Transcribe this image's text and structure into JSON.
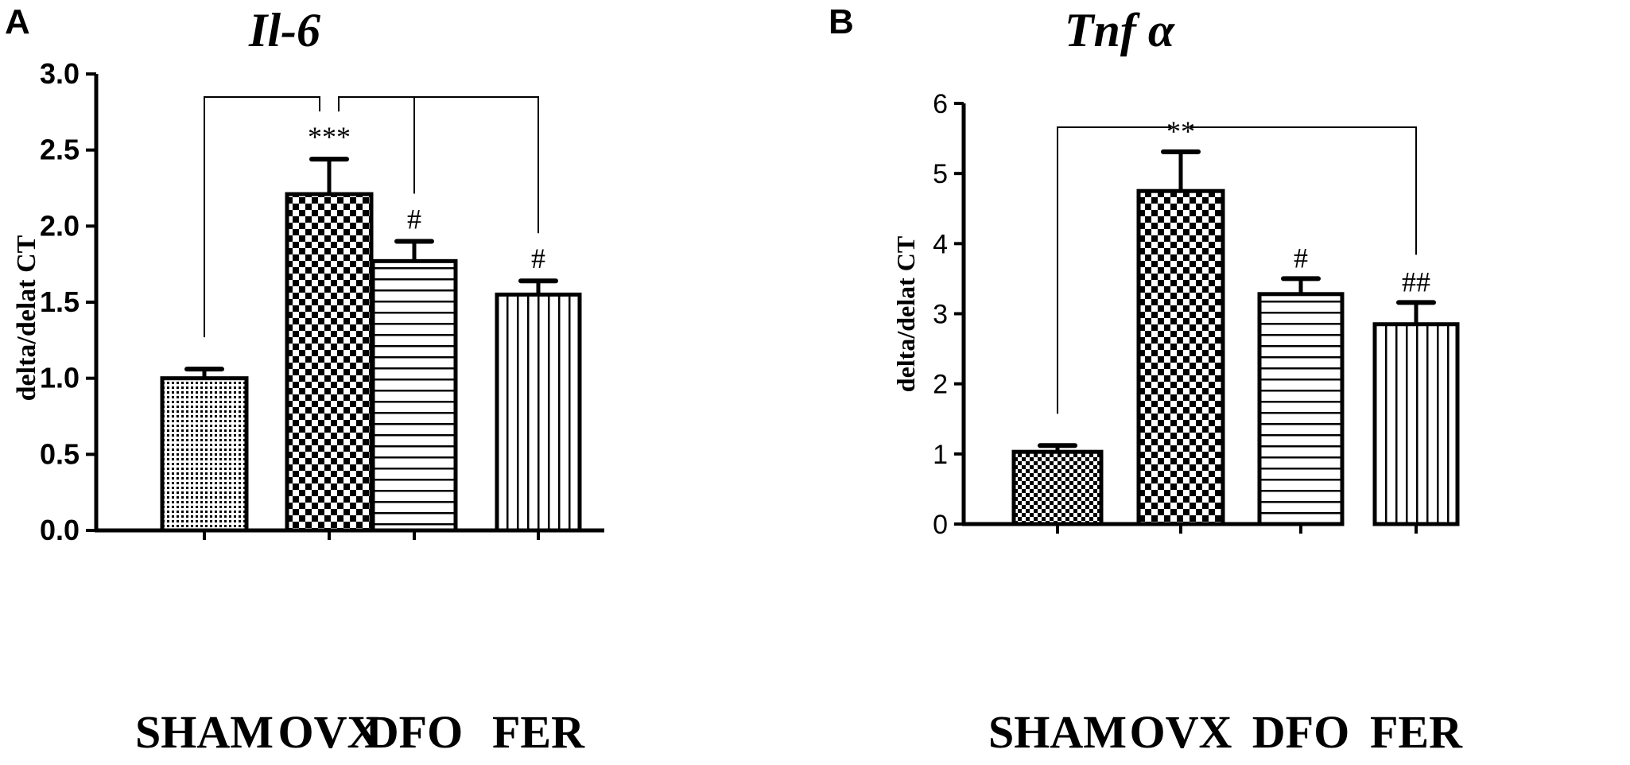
{
  "chart_data": [
    {
      "panel": "A",
      "type": "bar",
      "title": "Il-6",
      "ylabel": "delta/delat CT",
      "xlabel": "",
      "categories": [
        "SHAM",
        "OVX",
        "DFO",
        "FER"
      ],
      "values": [
        1.0,
        2.21,
        1.77,
        1.55
      ],
      "errors": [
        0.06,
        0.23,
        0.13,
        0.09
      ],
      "annotations": [
        "",
        "***",
        "#",
        "#"
      ],
      "ylim": [
        0,
        3.0
      ],
      "yticks": [
        "0.0",
        "0.5",
        "1.0",
        "1.5",
        "2.0",
        "2.5",
        "3.0"
      ],
      "patterns": [
        "dots",
        "checker",
        "hlines",
        "vlines"
      ],
      "brackets": [
        [
          0,
          1
        ],
        [
          1,
          2
        ],
        [
          1,
          3
        ]
      ],
      "grid": false
    },
    {
      "panel": "B",
      "type": "bar",
      "title": "Tnf α",
      "ylabel": "delta/delat CT",
      "xlabel": "",
      "categories": [
        "SHAM",
        "OVX",
        "DFO",
        "FER"
      ],
      "values": [
        1.03,
        4.75,
        3.28,
        2.85
      ],
      "errors": [
        0.09,
        0.56,
        0.22,
        0.31
      ],
      "annotations": [
        "",
        "**",
        "#",
        "##"
      ],
      "ylim": [
        0,
        6
      ],
      "yticks": [
        "0",
        "1",
        "2",
        "3",
        "4",
        "5",
        "6"
      ],
      "patterns": [
        "checker-small",
        "checker",
        "hlines",
        "vlines"
      ],
      "brackets": [
        [
          0,
          1
        ],
        [
          1,
          3
        ]
      ],
      "grid": false
    }
  ]
}
